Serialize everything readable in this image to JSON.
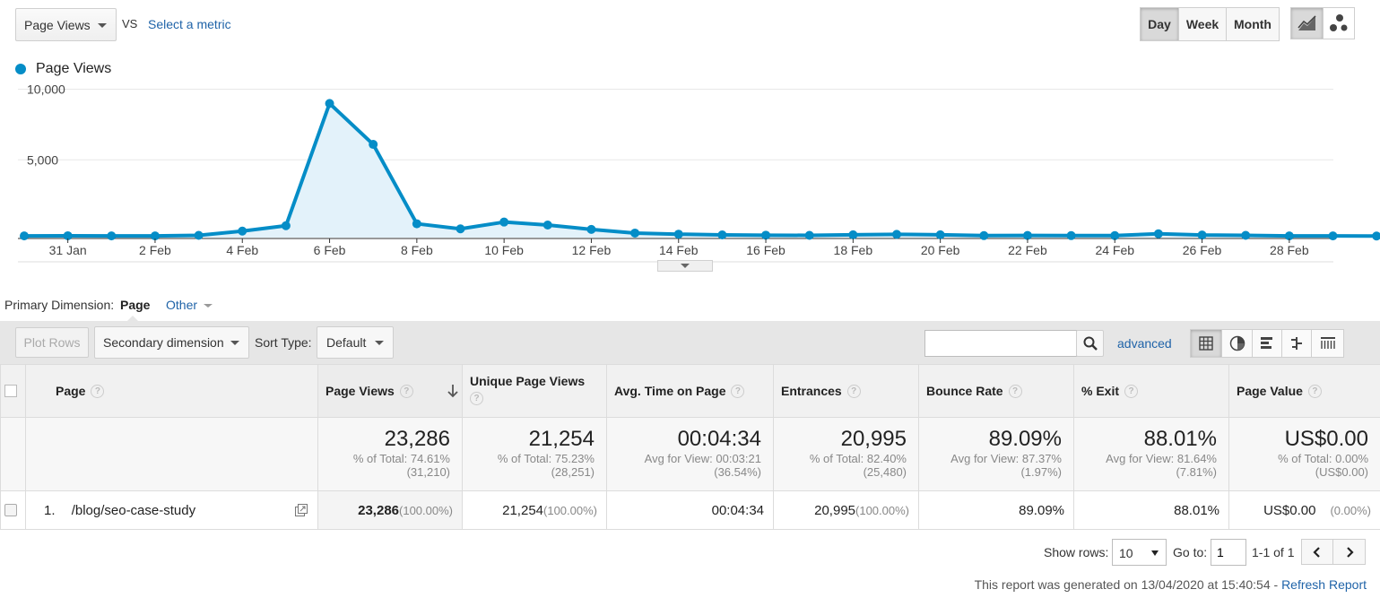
{
  "toolbar": {
    "metric_select": "Page Views",
    "vs_label": "VS",
    "select_metric_link": "Select a metric",
    "period_buttons": [
      "Day",
      "Week",
      "Month"
    ],
    "active_period": "Day"
  },
  "legend": {
    "series_name": "Page Views",
    "color": "#058dc7"
  },
  "chart_data": {
    "type": "area",
    "series": [
      {
        "name": "Page Views",
        "values": [
          120,
          130,
          120,
          120,
          160,
          460,
          840,
          9500,
          6600,
          980,
          620,
          1100,
          890,
          580,
          320,
          240,
          190,
          170,
          160,
          200,
          230,
          200,
          140,
          150,
          140,
          140,
          270,
          180,
          160,
          120,
          120,
          110
        ]
      }
    ],
    "x_tick_labels": [
      "31 Jan",
      "2 Feb",
      "4 Feb",
      "6 Feb",
      "8 Feb",
      "10 Feb",
      "12 Feb",
      "14 Feb",
      "16 Feb",
      "18 Feb",
      "20 Feb",
      "22 Feb",
      "24 Feb",
      "26 Feb",
      "28 Feb"
    ],
    "y_tick_labels": [
      "10,000",
      "5,000"
    ],
    "ylim": [
      0,
      10000
    ],
    "grid": true
  },
  "dimension": {
    "label": "Primary Dimension:",
    "active": "Page",
    "other": "Other"
  },
  "controls": {
    "plot_rows": "Plot Rows",
    "secondary_dimension": "Secondary dimension",
    "sort_type_label": "Sort Type:",
    "sort_type_value": "Default",
    "search_value": "",
    "advanced_link": "advanced"
  },
  "table": {
    "headers": {
      "page": "Page",
      "page_views": "Page Views",
      "unique_page_views": "Unique Page Views",
      "avg_time": "Avg. Time on Page",
      "entrances": "Entrances",
      "bounce_rate": "Bounce Rate",
      "exit": "% Exit",
      "page_value": "Page Value",
      "help_glyph": "?"
    },
    "totals": {
      "page_views": {
        "big": "23,286",
        "l1": "% of Total: 74.61%",
        "l2": "(31,210)"
      },
      "unique_page_views": {
        "big": "21,254",
        "l1": "% of Total: 75.23%",
        "l2": "(28,251)"
      },
      "avg_time": {
        "big": "00:04:34",
        "l1": "Avg for View: 00:03:21",
        "l2": "(36.54%)"
      },
      "entrances": {
        "big": "20,995",
        "l1": "% of Total: 82.40%",
        "l2": "(25,480)"
      },
      "bounce_rate": {
        "big": "89.09%",
        "l1": "Avg for View: 87.37%",
        "l2": "(1.97%)"
      },
      "exit": {
        "big": "88.01%",
        "l1": "Avg for View: 81.64%",
        "l2": "(7.81%)"
      },
      "page_value": {
        "big": "US$0.00",
        "l1": "% of Total: 0.00%",
        "l2": "(US$0.00)"
      }
    },
    "row": {
      "index": "1.",
      "page": "/blog/seo-case-study",
      "page_views": "23,286",
      "page_views_pct": "(100.00%)",
      "unique_page_views": "21,254",
      "unique_page_views_pct": "(100.00%)",
      "avg_time": "00:04:34",
      "entrances": "20,995",
      "entrances_pct": "(100.00%)",
      "bounce_rate": "89.09%",
      "exit": "88.01%",
      "page_value": "US$0.00",
      "page_value_pct": "(0.00%)"
    }
  },
  "pagination": {
    "show_rows_label": "Show rows:",
    "show_rows_value": "10",
    "goto_label": "Go to:",
    "goto_value": "1",
    "range": "1-1 of 1"
  },
  "footer": {
    "generated_text": "This report was generated on 13/04/2020 at 15:40:54 -",
    "refresh_link": "Refresh Report"
  }
}
